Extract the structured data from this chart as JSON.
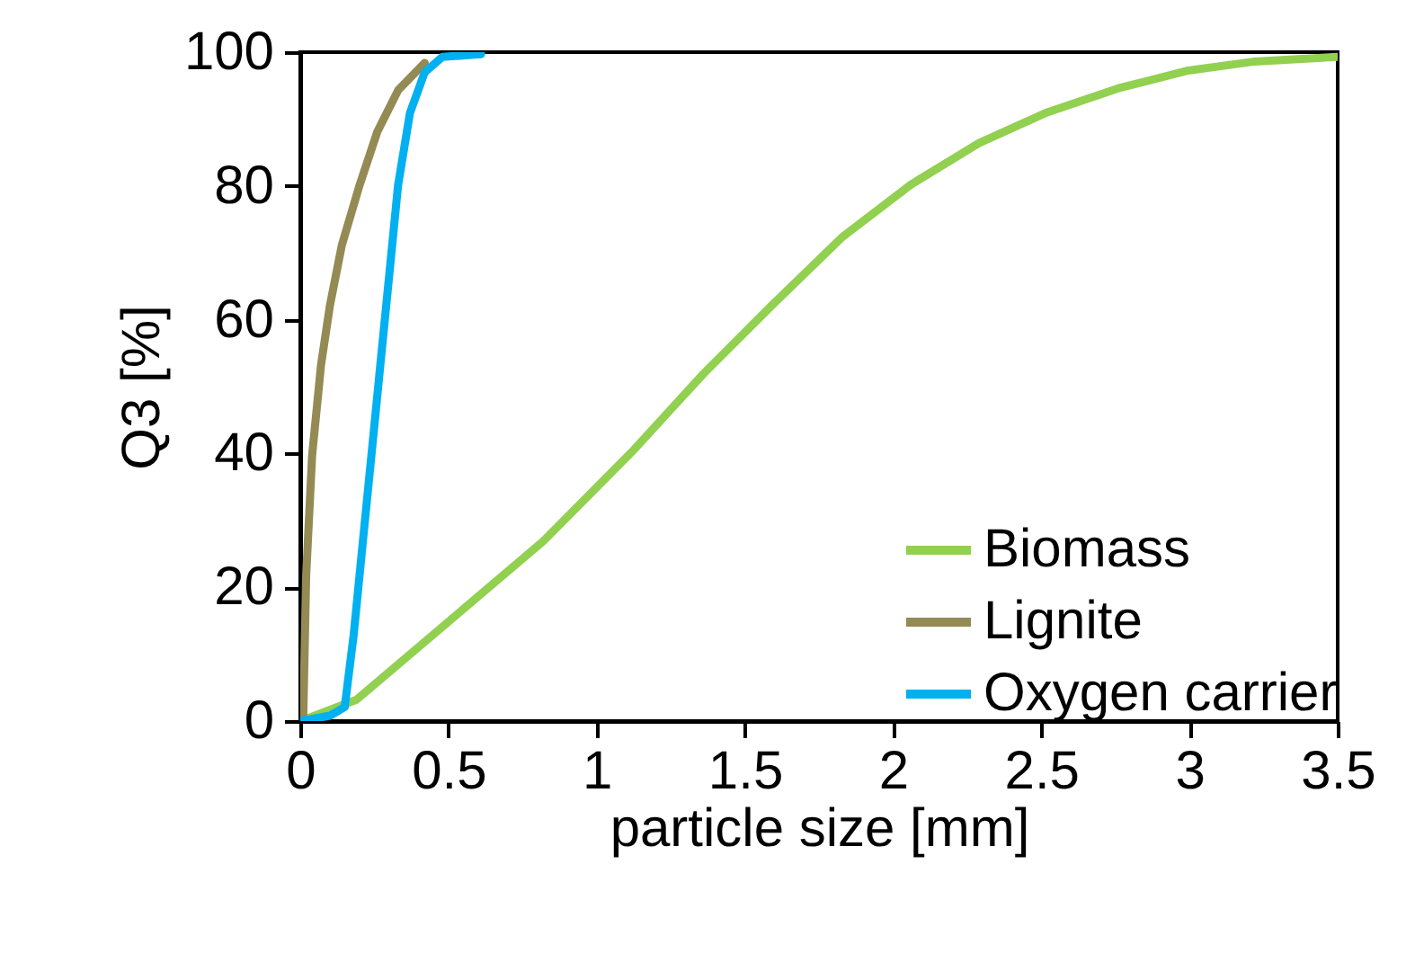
{
  "chart_data": {
    "type": "line",
    "xlabel": "particle size [mm]",
    "ylabel": "Q3 [%]",
    "xlim": [
      0,
      3.5
    ],
    "ylim": [
      0,
      100
    ],
    "xticks": [
      0,
      0.5,
      1,
      1.5,
      2,
      2.5,
      3,
      3.5
    ],
    "yticks": [
      0,
      20,
      40,
      60,
      80,
      100
    ],
    "grid": false,
    "legend": "bottom right",
    "marker": "none",
    "line_style": "solid",
    "series": [
      {
        "name": "Biomass",
        "color": "#92d050",
        "x": [
          0,
          0.19,
          0.52,
          0.82,
          1.12,
          1.36,
          1.59,
          1.83,
          2.06,
          2.29,
          2.52,
          2.76,
          2.99,
          3.22,
          3.5
        ],
        "values": [
          0,
          3.2,
          15.6,
          26.9,
          40.3,
          51.9,
          62.1,
          72.4,
          80.2,
          86.4,
          91,
          94.6,
          97.2,
          98.6,
          99.3
        ]
      },
      {
        "name": "Lignite",
        "color": "#948a54",
        "x": [
          0,
          0.01,
          0.02,
          0.04,
          0.07,
          0.1,
          0.14,
          0.2,
          0.26,
          0.33,
          0.42
        ],
        "values": [
          0,
          0.3,
          21.8,
          39.7,
          53.2,
          62.1,
          71.1,
          80.1,
          88.1,
          94.3,
          98.4
        ]
      },
      {
        "name": "Oxygen carrier",
        "color": "#00b0f0",
        "x": [
          0,
          0.1,
          0.15,
          0.18,
          0.21,
          0.24,
          0.27,
          0.3,
          0.33,
          0.37,
          0.42,
          0.48,
          0.61
        ],
        "values": [
          0,
          0.8,
          2.1,
          12.8,
          26.3,
          39.7,
          53.2,
          66.6,
          80.1,
          90.9,
          97,
          99.3,
          99.7
        ]
      }
    ]
  }
}
